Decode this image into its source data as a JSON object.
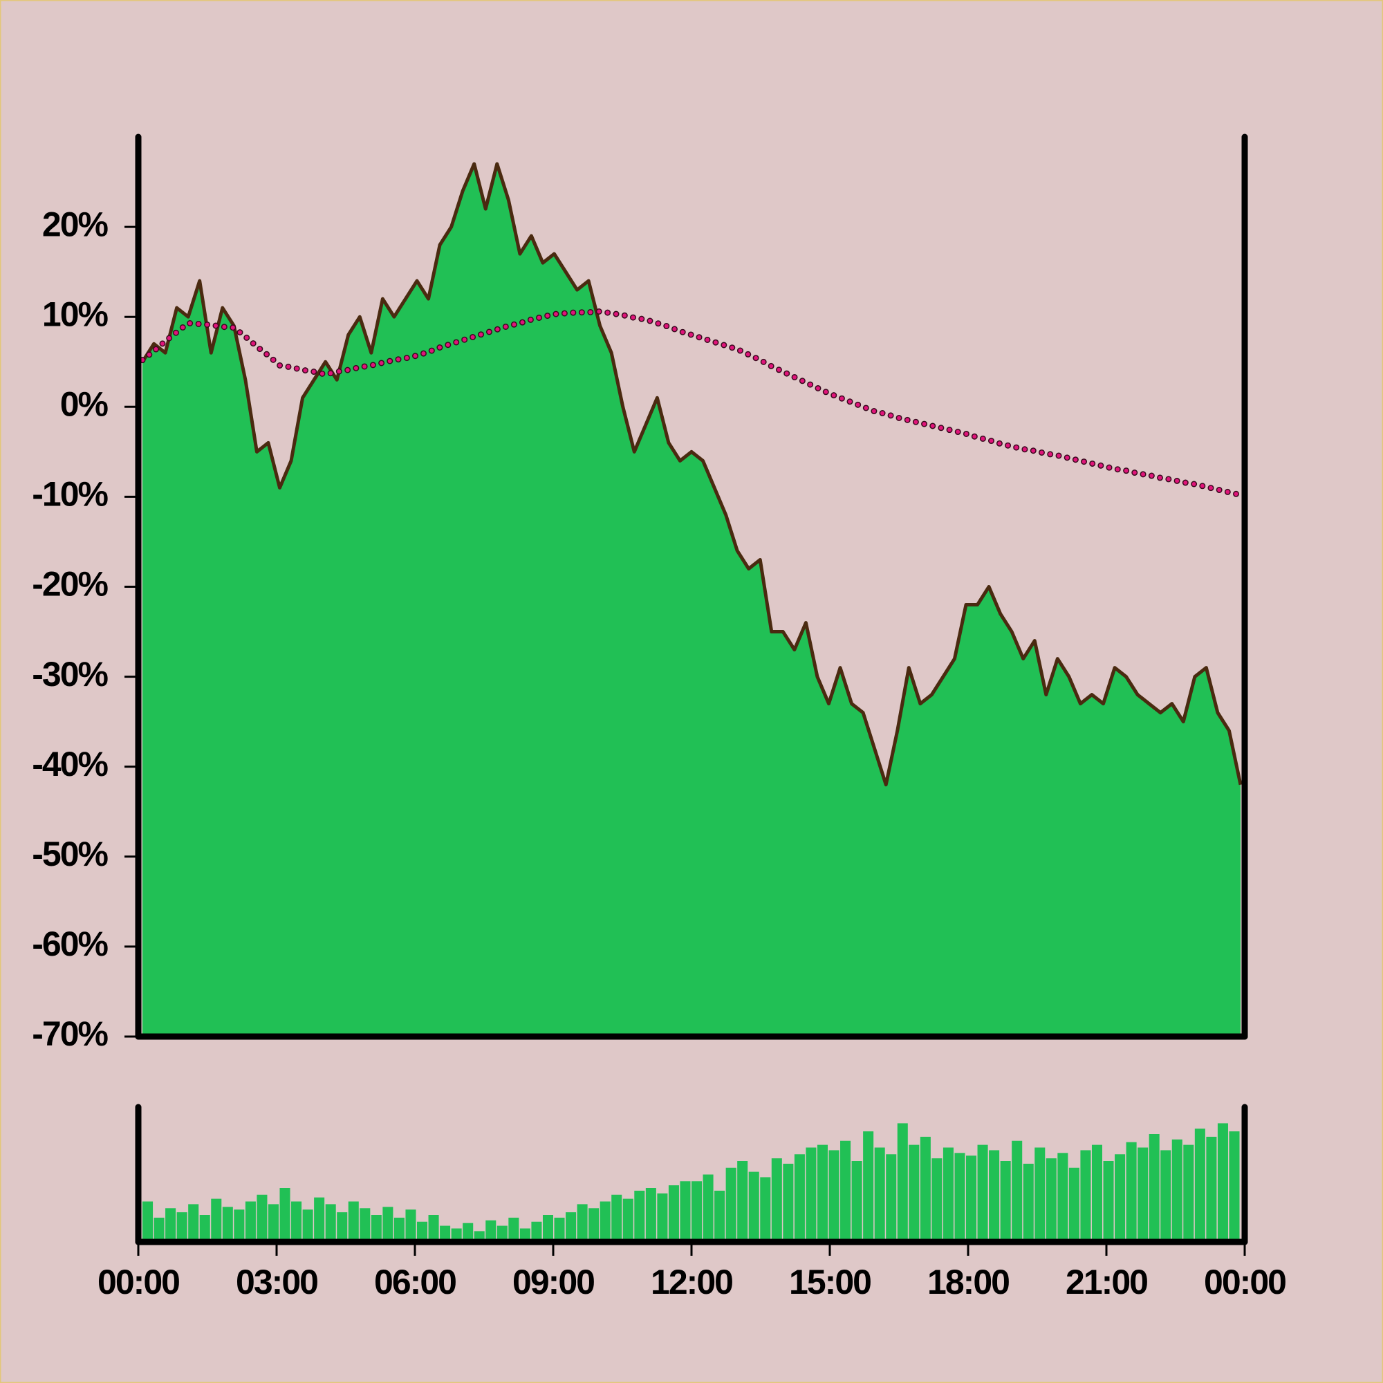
{
  "chart_data": [
    {
      "type": "area",
      "x": [
        0,
        0.25,
        0.5,
        0.75,
        1,
        1.25,
        1.5,
        1.75,
        2,
        2.25,
        2.5,
        2.75,
        3,
        3.25,
        3.5,
        3.75,
        4,
        4.25,
        4.5,
        4.75,
        5,
        5.25,
        5.5,
        5.75,
        6,
        6.25,
        6.5,
        6.75,
        7,
        7.25,
        7.5,
        7.75,
        8,
        8.25,
        8.5,
        8.75,
        9,
        9.25,
        9.5,
        9.75,
        10,
        10.25,
        10.5,
        10.75,
        11,
        11.25,
        11.5,
        11.75,
        12,
        12.25,
        12.5,
        12.75,
        13,
        13.25,
        13.5,
        13.75,
        14,
        14.25,
        14.5,
        14.75,
        15,
        15.25,
        15.5,
        15.75,
        16,
        16.25,
        16.5,
        16.75,
        17,
        17.25,
        17.5,
        17.75,
        18,
        18.25,
        18.5,
        18.75,
        19,
        19.25,
        19.5,
        19.75,
        20,
        20.25,
        20.5,
        20.75,
        21,
        21.25,
        21.5,
        21.75,
        22,
        22.25,
        22.5,
        22.75,
        23,
        23.25,
        23.5,
        23.75,
        24
      ],
      "series": [
        {
          "color": "#21c055",
          "line_color": "#4a2a10",
          "values": [
            5,
            7,
            6,
            11,
            10,
            14,
            6,
            11,
            9,
            3,
            -5,
            -4,
            -9,
            -6,
            1,
            3,
            5,
            3,
            8,
            10,
            6,
            12,
            10,
            12,
            14,
            12,
            18,
            20,
            24,
            27,
            22,
            27,
            23,
            17,
            19,
            16,
            17,
            15,
            13,
            14,
            9,
            6,
            0,
            -5,
            -2,
            1,
            -4,
            -6,
            -5,
            -6,
            -9,
            -12,
            -16,
            -18,
            -17,
            -25,
            -25,
            -27,
            -24,
            -30,
            -33,
            -29,
            -33,
            -34,
            -38,
            -42,
            -36,
            -29,
            -33,
            -32,
            -30,
            -28,
            -22,
            -22,
            -20,
            -23,
            -25,
            -28,
            -26,
            -32,
            -28,
            -30,
            -33,
            -32,
            -33,
            -29,
            -30,
            -32,
            -33,
            -34,
            -33,
            -35,
            -30,
            -29,
            -34,
            -36,
            -42
          ]
        },
        {
          "color": "#e0147a",
          "values": [
            5.2,
            6.2,
            7.3,
            8.3,
            9.3,
            9.2,
            9.1,
            8.9,
            8.8,
            7.8,
            6.7,
            5.7,
            4.6,
            4.4,
            4.1,
            3.9,
            3.6,
            3.9,
            4.1,
            4.4,
            4.6,
            4.9,
            5.2,
            5.4,
            5.7,
            6.1,
            6.6,
            7.0,
            7.4,
            7.8,
            8.2,
            8.6,
            9.0,
            9.3,
            9.7,
            10.0,
            10.3,
            10.4,
            10.5,
            10.5,
            10.6,
            10.4,
            10.2,
            9.9,
            9.7,
            9.3,
            8.9,
            8.4,
            8.0,
            7.6,
            7.2,
            6.8,
            6.4,
            5.8,
            5.2,
            4.5,
            3.9,
            3.3,
            2.7,
            2.1,
            1.5,
            1.0,
            0.5,
            0.0,
            -0.5,
            -0.8,
            -1.2,
            -1.5,
            -1.8,
            -2.1,
            -2.4,
            -2.7,
            -3.0,
            -3.4,
            -3.7,
            -4.1,
            -4.4,
            -4.7,
            -4.9,
            -5.2,
            -5.4,
            -5.7,
            -6.0,
            -6.3,
            -6.6,
            -6.9,
            -7.1,
            -7.4,
            -7.6,
            -7.9,
            -8.1,
            -8.4,
            -8.6,
            -8.9,
            -9.2,
            -9.5,
            -9.8
          ]
        }
      ],
      "xlim": [
        0,
        24
      ],
      "ylim": [
        -70,
        30
      ],
      "yticks": [
        {
          "value": -70,
          "label": "-70%"
        },
        {
          "value": -60,
          "label": "-60%"
        },
        {
          "value": -50,
          "label": "-50%"
        },
        {
          "value": -40,
          "label": "-40%"
        },
        {
          "value": -30,
          "label": "-30%"
        },
        {
          "value": -20,
          "label": "-20%"
        },
        {
          "value": -10,
          "label": "-10%"
        },
        {
          "value": 0,
          "label": "0%"
        },
        {
          "value": 10,
          "label": "10%"
        },
        {
          "value": 20,
          "label": "20%"
        }
      ]
    },
    {
      "type": "bar",
      "x": [
        0,
        0.25,
        0.5,
        0.75,
        1,
        1.25,
        1.5,
        1.75,
        2,
        2.25,
        2.5,
        2.75,
        3,
        3.25,
        3.5,
        3.75,
        4,
        4.25,
        4.5,
        4.75,
        5,
        5.25,
        5.5,
        5.75,
        6,
        6.25,
        6.5,
        6.75,
        7,
        7.25,
        7.5,
        7.75,
        8,
        8.25,
        8.5,
        8.75,
        9,
        9.25,
        9.5,
        9.75,
        10,
        10.25,
        10.5,
        10.75,
        11,
        11.25,
        11.5,
        11.75,
        12,
        12.25,
        12.5,
        12.75,
        13,
        13.25,
        13.5,
        13.75,
        14,
        14.25,
        14.5,
        14.75,
        15,
        15.25,
        15.5,
        15.75,
        16,
        16.25,
        16.5,
        16.75,
        17,
        17.25,
        17.5,
        17.75,
        18,
        18.25,
        18.5,
        18.75,
        19,
        19.25,
        19.5,
        19.75,
        20,
        20.25,
        20.5,
        20.75,
        21,
        21.25,
        21.5,
        21.75,
        22,
        22.25,
        22.5,
        22.75,
        23,
        23.25,
        23.5,
        23.75
      ],
      "values": [
        30,
        18,
        25,
        22,
        28,
        20,
        32,
        26,
        24,
        30,
        35,
        28,
        40,
        30,
        24,
        33,
        28,
        22,
        30,
        25,
        20,
        26,
        18,
        24,
        15,
        20,
        12,
        10,
        14,
        8,
        16,
        12,
        18,
        10,
        15,
        20,
        18,
        22,
        28,
        25,
        30,
        35,
        32,
        38,
        40,
        36,
        42,
        45,
        45,
        50,
        38,
        55,
        60,
        52,
        48,
        62,
        58,
        65,
        70,
        72,
        68,
        75,
        60,
        82,
        70,
        65,
        88,
        72,
        78,
        62,
        70,
        66,
        64,
        72,
        68,
        60,
        75,
        58,
        70,
        62,
        66,
        55,
        68,
        72,
        60,
        65,
        74,
        70,
        80,
        68,
        76,
        72,
        84,
        78,
        88,
        82
      ],
      "color": "#21c055",
      "xlim": [
        0,
        24
      ],
      "ylim": [
        0,
        100
      ],
      "xticks": [
        {
          "value": 0,
          "label": "00:00"
        },
        {
          "value": 3,
          "label": "03:00"
        },
        {
          "value": 6,
          "label": "06:00"
        },
        {
          "value": 9,
          "label": "09:00"
        },
        {
          "value": 12,
          "label": "12:00"
        },
        {
          "value": 15,
          "label": "15:00"
        },
        {
          "value": 18,
          "label": "18:00"
        },
        {
          "value": 21,
          "label": "21:00"
        },
        {
          "value": 24,
          "label": "00:00"
        }
      ]
    }
  ]
}
